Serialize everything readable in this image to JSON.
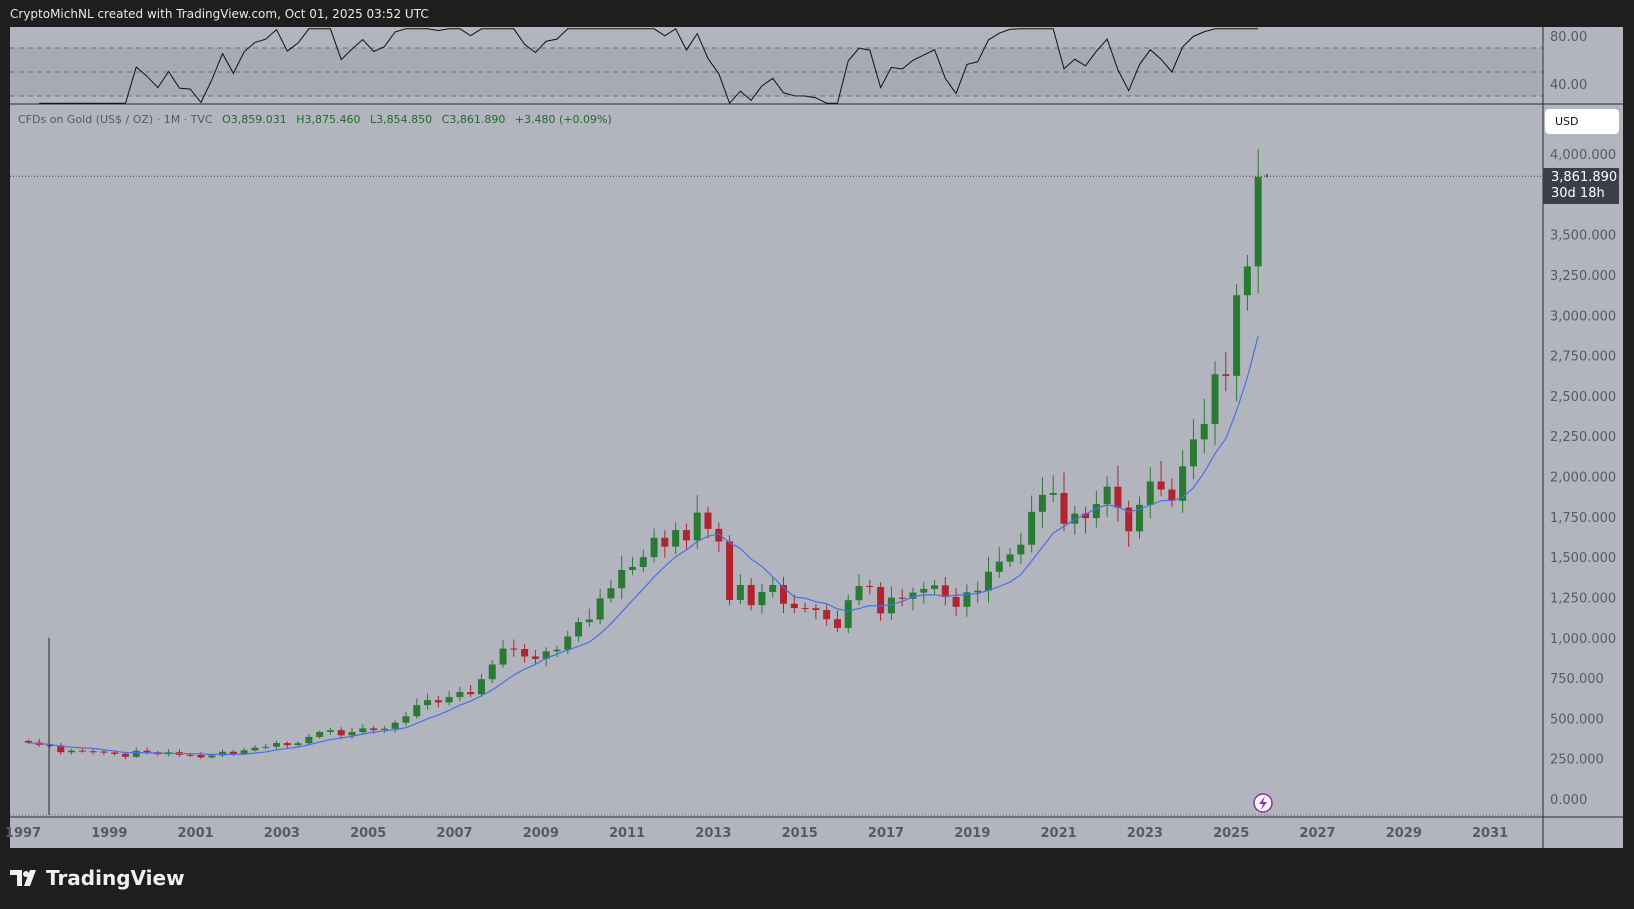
{
  "header": {
    "title": "CryptoMichNL created with TradingView.com, Oct 01, 2025 03:52 UTC"
  },
  "legend": {
    "symbol": "CFDs on Gold (US$ / OZ) · 1M · TVC",
    "open": "O3,859.031",
    "high": "H3,875.460",
    "low": "L3,854.850",
    "close": "C3,861.890",
    "change": "+3.480 (+0.09%)"
  },
  "price_axis": {
    "currency": "USD",
    "last_price": "3,861.890",
    "countdown": "30d 18h"
  },
  "brand": {
    "name": "TradingView"
  },
  "colors": {
    "background": "#b2b5be",
    "up": "#2a7a34",
    "down": "#b0232f",
    "ma": "#4c6fe6",
    "rsi": "#111111"
  },
  "chart_data": {
    "type": "candlestick",
    "title": "CFDs on Gold (US$ / OZ) · 1M · TVC",
    "ylim": [
      0,
      4000
    ],
    "yticks": [
      "4,000.000",
      "3,500.000",
      "3,250.000",
      "3,000.000",
      "2,750.000",
      "2,500.000",
      "2,250.000",
      "2,000.000",
      "1,750.000",
      "1,500.000",
      "1,250.000",
      "1,000.000",
      "750.000",
      "500.000",
      "250.000",
      "0.000"
    ],
    "ytick_values": [
      4000,
      3500,
      3250,
      3000,
      2750,
      2500,
      2250,
      2000,
      1750,
      1500,
      1250,
      1000,
      750,
      500,
      250,
      0
    ],
    "xticks": [
      "1997",
      "1999",
      "2001",
      "2003",
      "2005",
      "2007",
      "2009",
      "2011",
      "2013",
      "2015",
      "2017",
      "2019",
      "2021",
      "2023",
      "2025",
      "2027",
      "2029",
      "2031"
    ],
    "start": 1997,
    "period": "quarter",
    "closes": [
      350,
      335,
      332,
      290,
      300,
      296,
      294,
      288,
      280,
      262,
      299,
      290,
      278,
      290,
      274,
      273,
      258,
      270,
      293,
      278,
      302,
      318,
      324,
      347,
      334,
      346,
      385,
      416,
      427,
      395,
      415,
      438,
      428,
      436,
      473,
      513,
      582,
      613,
      599,
      632,
      663,
      650,
      743,
      834,
      933,
      930,
      884,
      869,
      916,
      926,
      1008,
      1097,
      1113,
      1244,
      1307,
      1420,
      1439,
      1500,
      1620,
      1565,
      1668,
      1604,
      1776,
      1675,
      1597,
      1234,
      1327,
      1202,
      1284,
      1327,
      1211,
      1184,
      1183,
      1172,
      1115,
      1061,
      1233,
      1321,
      1315,
      1151,
      1249,
      1242,
      1280,
      1303,
      1325,
      1253,
      1192,
      1282,
      1292,
      1409,
      1472,
      1517,
      1577,
      1781,
      1886,
      1898,
      1707,
      1770,
      1742,
      1829,
      1937,
      1807,
      1660,
      1824,
      1969,
      1919,
      1849,
      2063,
      2230,
      2326,
      2634,
      2624,
      3124,
      3303,
      3858
    ],
    "last_candle": {
      "date": "2025-10",
      "open": 3859.031,
      "high": 3875.46,
      "low": 3854.85,
      "close": 3861.89
    },
    "rsi": {
      "yticks": [
        "80.00",
        "40.00"
      ],
      "ytick_values": [
        80,
        40
      ],
      "levels": [
        70,
        50,
        30
      ]
    },
    "grid": false
  }
}
